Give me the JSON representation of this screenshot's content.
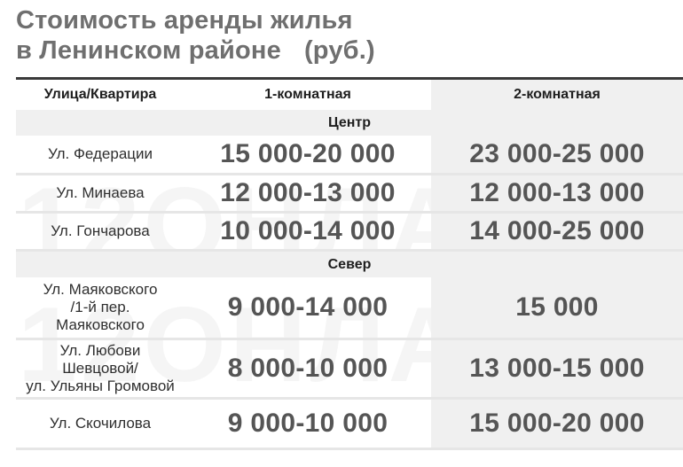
{
  "title": {
    "line1": "Стоимость аренды жилья",
    "line2": "в Ленинском районе",
    "unit": "(руб.)"
  },
  "watermark": "12ОНЛАЙН",
  "table": {
    "headers": [
      "Улица/Квартира",
      "1-комнатная",
      "2-комнатная"
    ],
    "sections": [
      {
        "name": "Центр",
        "rows": [
          {
            "street": "Ул. Федерации",
            "one_room": "15 000-20 000",
            "two_room": "23 000-25 000"
          },
          {
            "street": "Ул. Минаева",
            "one_room": "12 000-13 000",
            "two_room": "12 000-13 000"
          },
          {
            "street": "Ул. Гончарова",
            "one_room": "10 000-14 000",
            "two_room": "14 000-25 000"
          }
        ]
      },
      {
        "name": "Север",
        "rows": [
          {
            "street": [
              "Ул. Маяковского",
              "/1-й пер.",
              "Маяковского"
            ],
            "one_room": "9 000-14 000",
            "two_room": "15 000"
          },
          {
            "street": [
              "Ул. Любови",
              "Шевцовой/",
              "ул. Ульяны Громовой"
            ],
            "one_room": "8 000-10 000",
            "two_room": "13 000-15 000"
          },
          {
            "street": [
              "Ул. Скочилова"
            ],
            "one_room": "9 000-10 000",
            "two_room": "15 000-20 000"
          }
        ]
      }
    ]
  }
}
